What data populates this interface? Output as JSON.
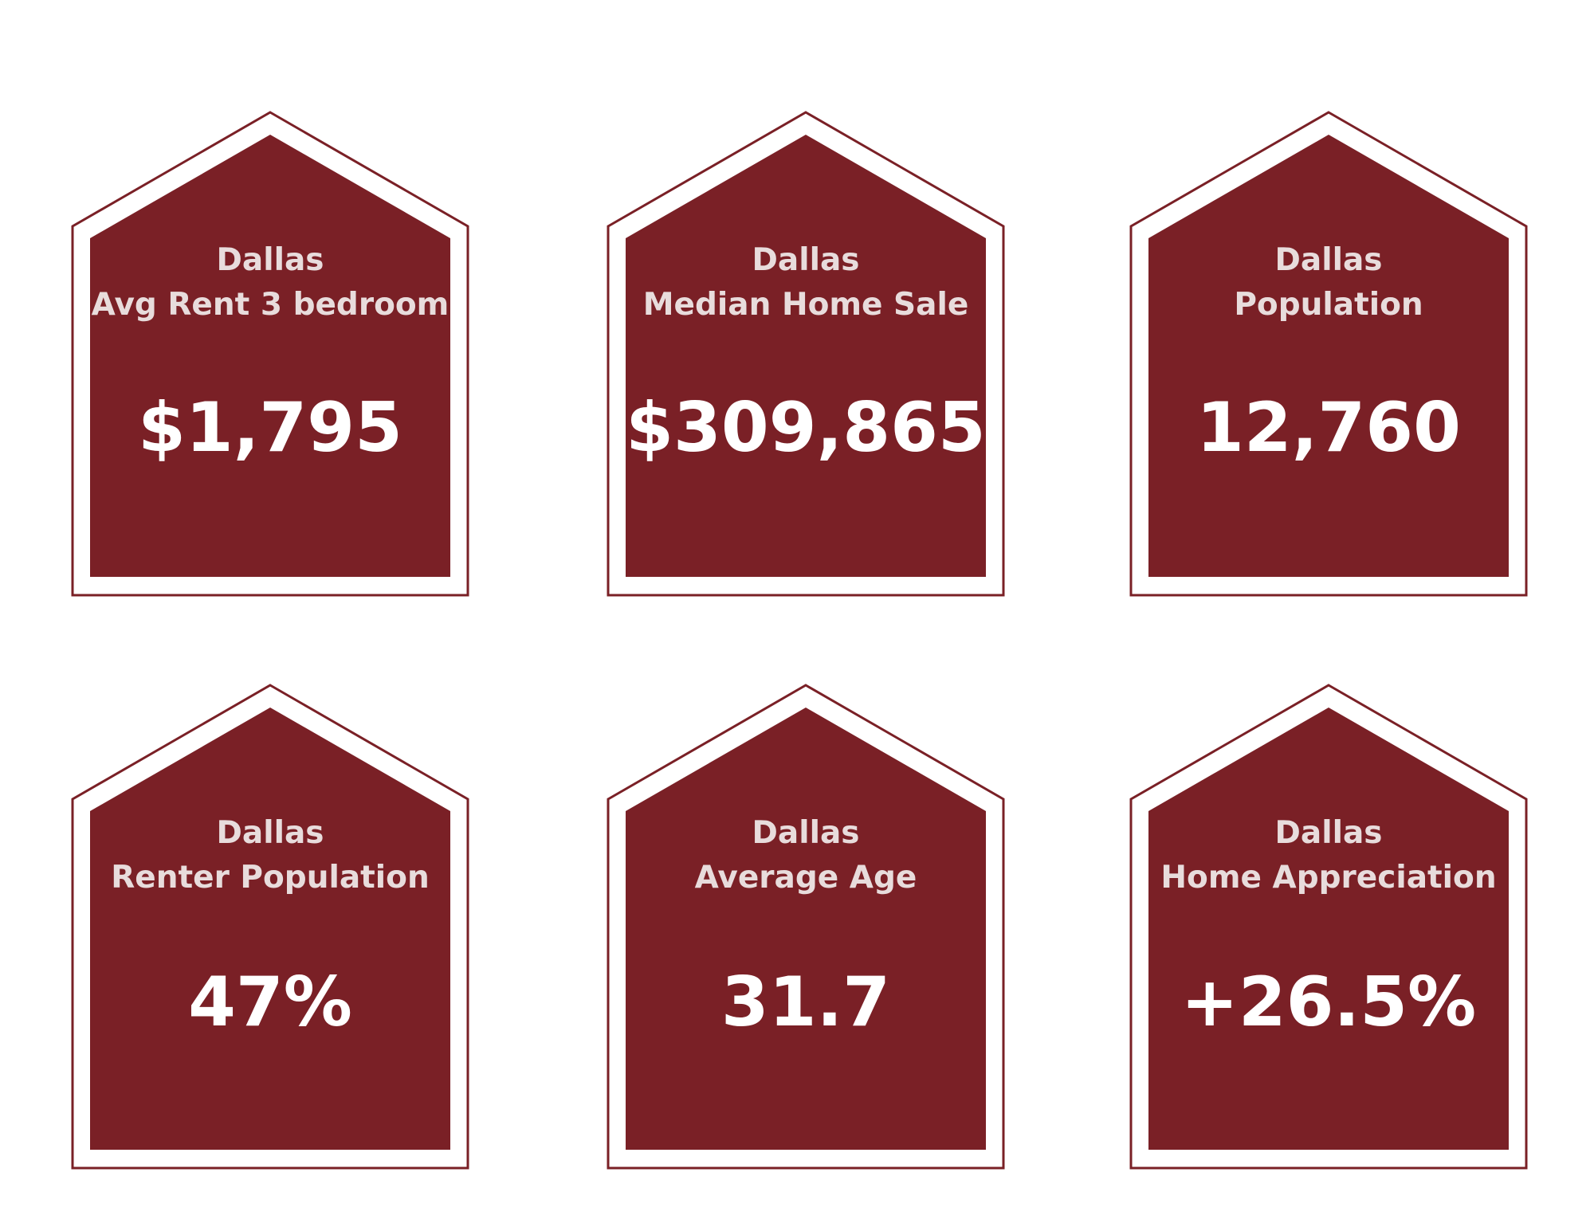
{
  "colors": {
    "accent": "#7a2026",
    "label_text": "#e8dcdc",
    "value_text": "#ffffff",
    "background": "#ffffff"
  },
  "cards": [
    {
      "city": "Dallas",
      "metric": "Avg Rent 3 bedroom",
      "value": "$1,795"
    },
    {
      "city": "Dallas",
      "metric": "Median Home Sale",
      "value": "$309,865"
    },
    {
      "city": "Dallas",
      "metric": "Population",
      "value": "12,760"
    },
    {
      "city": "Dallas",
      "metric": "Renter Population",
      "value": "47%"
    },
    {
      "city": "Dallas",
      "metric": "Average Age",
      "value": "31.7"
    },
    {
      "city": "Dallas",
      "metric": "Home Appreciation",
      "value": "+26.5%"
    }
  ]
}
